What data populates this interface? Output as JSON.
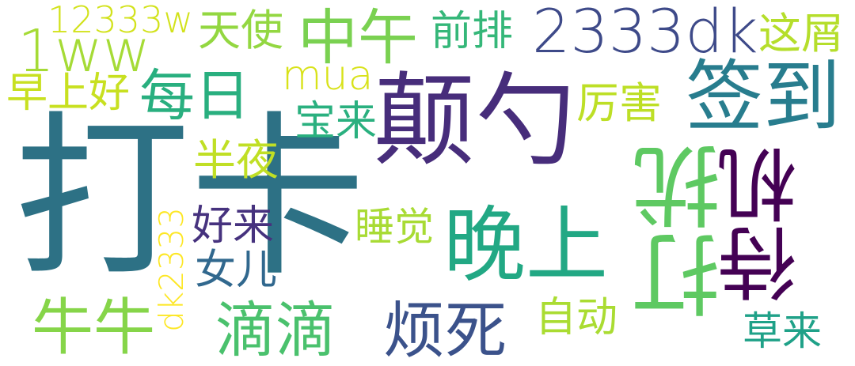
{
  "words": [
    {
      "text": "打卡",
      "color": "#2d7185"
    },
    {
      "text": "颠勺",
      "color": "#472d7b"
    },
    {
      "text": "签到",
      "color": "#287d8e"
    },
    {
      "text": "2333dk",
      "color": "#3e4a89"
    },
    {
      "text": "中午",
      "color": "#7ad151"
    },
    {
      "text": "1ww",
      "color": "#a5db36"
    },
    {
      "text": "每日",
      "color": "#29af7f"
    },
    {
      "text": "12333w",
      "color": "#d2e21b"
    },
    {
      "text": "天使",
      "color": "#93d741"
    },
    {
      "text": "前排",
      "color": "#35b779"
    },
    {
      "text": "这屑",
      "color": "#b5de2b"
    },
    {
      "text": "早上好",
      "color": "#c8e020"
    },
    {
      "text": "mua",
      "color": "#d8e219"
    },
    {
      "text": "宝来",
      "color": "#2ab07f"
    },
    {
      "text": "厉害",
      "color": "#bddf26"
    },
    {
      "text": "半夜",
      "color": "#c0df25"
    },
    {
      "text": "打扰",
      "color": "#5ec962"
    },
    {
      "text": "待机",
      "color": "#440154"
    },
    {
      "text": "晚上",
      "color": "#22a884"
    },
    {
      "text": "好来",
      "color": "#46327e"
    },
    {
      "text": "睡觉",
      "color": "#a8db34"
    },
    {
      "text": "女儿",
      "color": "#31688e"
    },
    {
      "text": "dk2333",
      "color": "#fde725"
    },
    {
      "text": "牛牛",
      "color": "#86d549"
    },
    {
      "text": "滴滴",
      "color": "#4ac16d"
    },
    {
      "text": "烦死",
      "color": "#3b528b"
    },
    {
      "text": "自动",
      "color": "#aadc32"
    },
    {
      "text": "草来",
      "color": "#1fa188"
    }
  ]
}
